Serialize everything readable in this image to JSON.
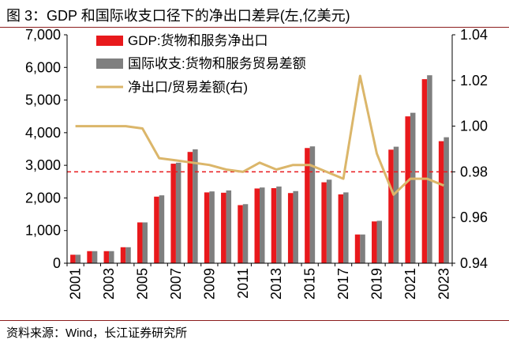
{
  "title": "图 3：GDP 和国际收支口径下的净出口差异(左,亿美元)",
  "source": "资料来源：Wind，长江证券研究所",
  "chart_data": {
    "type": "bar",
    "title": "图 3：GDP 和国际收支口径下的净出口差异(左,亿美元)",
    "categories": [
      "2001",
      "2002",
      "2003",
      "2004",
      "2005",
      "2006",
      "2007",
      "2008",
      "2009",
      "2010",
      "2011",
      "2012",
      "2013",
      "2014",
      "2015",
      "2016",
      "2017",
      "2018",
      "2019",
      "2020",
      "2021",
      "2022",
      "2023"
    ],
    "x_tick_labels": [
      "2001",
      "2003",
      "2005",
      "2007",
      "2009",
      "2011",
      "2013",
      "2015",
      "2017",
      "2019",
      "2021",
      "2023"
    ],
    "series": [
      {
        "name": "GDP:货物和服务净出口",
        "type": "bar",
        "axis": "left",
        "color": "#e8191c",
        "values": [
          260,
          370,
          370,
          490,
          1250,
          2040,
          3050,
          3410,
          2170,
          2160,
          1780,
          2290,
          2300,
          2150,
          3530,
          2480,
          2110,
          880,
          1280,
          3480,
          4500,
          5640,
          3740
        ]
      },
      {
        "name": "国际收支:货物和服务贸易差额",
        "type": "bar",
        "axis": "left",
        "color": "#7f7f7f",
        "values": [
          260,
          370,
          370,
          490,
          1250,
          2080,
          3080,
          3490,
          2200,
          2230,
          1810,
          2320,
          2350,
          2210,
          3580,
          2560,
          2170,
          880,
          1300,
          3570,
          4610,
          5760,
          3860
        ]
      },
      {
        "name": "净出口/贸易差额(右)",
        "type": "line",
        "axis": "right",
        "color": "#dbb66a",
        "values": [
          1.0,
          1.0,
          1.0,
          1.0,
          0.999,
          0.986,
          0.985,
          0.984,
          0.983,
          0.981,
          0.98,
          0.984,
          0.981,
          0.983,
          0.983,
          0.98,
          0.977,
          1.022,
          0.988,
          0.97,
          0.977,
          0.977,
          0.974
        ]
      }
    ],
    "y_left": {
      "min": 0,
      "max": 7000,
      "ticks": [
        "0",
        "1,000",
        "2,000",
        "3,000",
        "4,000",
        "5,000",
        "6,000",
        "7,000"
      ]
    },
    "y_right": {
      "min": 0.94,
      "max": 1.04,
      "ticks": [
        "0.94",
        "0.96",
        "0.98",
        "1.00",
        "1.02",
        "1.04"
      ]
    },
    "reference_line": {
      "axis": "right",
      "value": 0.98,
      "color": "#e8191c",
      "style": "dashed"
    },
    "legend_position": "top-left",
    "grid": false
  }
}
